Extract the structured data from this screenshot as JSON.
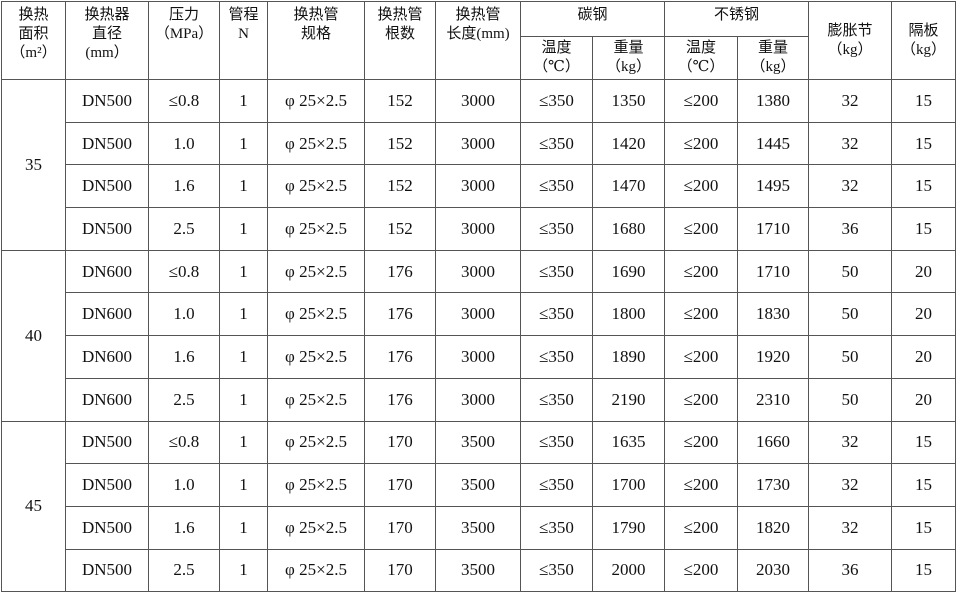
{
  "headers": {
    "area": "换热\n面积\n（m²）",
    "diameter": "换热器\n直径\n(mm）",
    "pressure": "压力\n（MPa）",
    "passes": "管程\nN",
    "tube_spec": "换热管\n规格",
    "tube_count": "换热管\n根数",
    "tube_length": "换热管\n长度(mm)",
    "carbon_steel": "碳钢",
    "stainless_steel": "不锈钢",
    "temperature": "温度\n（℃）",
    "weight": "重量\n（kg）",
    "expansion_joint": "膨胀节\n（kg）",
    "baffle": "隔板\n（kg）"
  },
  "groups": [
    {
      "area": "35",
      "rows": [
        [
          "DN500",
          "≤0.8",
          "1",
          "φ 25×2.5",
          "152",
          "3000",
          "≤350",
          "1350",
          "≤200",
          "1380",
          "32",
          "15"
        ],
        [
          "DN500",
          "1.0",
          "1",
          "φ 25×2.5",
          "152",
          "3000",
          "≤350",
          "1420",
          "≤200",
          "1445",
          "32",
          "15"
        ],
        [
          "DN500",
          "1.6",
          "1",
          "φ 25×2.5",
          "152",
          "3000",
          "≤350",
          "1470",
          "≤200",
          "1495",
          "32",
          "15"
        ],
        [
          "DN500",
          "2.5",
          "1",
          "φ 25×2.5",
          "152",
          "3000",
          "≤350",
          "1680",
          "≤200",
          "1710",
          "36",
          "15"
        ]
      ]
    },
    {
      "area": "40",
      "rows": [
        [
          "DN600",
          "≤0.8",
          "1",
          "φ 25×2.5",
          "176",
          "3000",
          "≤350",
          "1690",
          "≤200",
          "1710",
          "50",
          "20"
        ],
        [
          "DN600",
          "1.0",
          "1",
          "φ 25×2.5",
          "176",
          "3000",
          "≤350",
          "1800",
          "≤200",
          "1830",
          "50",
          "20"
        ],
        [
          "DN600",
          "1.6",
          "1",
          "φ 25×2.5",
          "176",
          "3000",
          "≤350",
          "1890",
          "≤200",
          "1920",
          "50",
          "20"
        ],
        [
          "DN600",
          "2.5",
          "1",
          "φ 25×2.5",
          "176",
          "3000",
          "≤350",
          "2190",
          "≤200",
          "2310",
          "50",
          "20"
        ]
      ]
    },
    {
      "area": "45",
      "rows": [
        [
          "DN500",
          "≤0.8",
          "1",
          "φ 25×2.5",
          "170",
          "3500",
          "≤350",
          "1635",
          "≤200",
          "1660",
          "32",
          "15"
        ],
        [
          "DN500",
          "1.0",
          "1",
          "φ 25×2.5",
          "170",
          "3500",
          "≤350",
          "1700",
          "≤200",
          "1730",
          "32",
          "15"
        ],
        [
          "DN500",
          "1.6",
          "1",
          "φ 25×2.5",
          "170",
          "3500",
          "≤350",
          "1790",
          "≤200",
          "1820",
          "32",
          "15"
        ],
        [
          "DN500",
          "2.5",
          "1",
          "φ 25×2.5",
          "170",
          "3500",
          "≤350",
          "2000",
          "≤200",
          "2030",
          "36",
          "15"
        ]
      ]
    }
  ]
}
